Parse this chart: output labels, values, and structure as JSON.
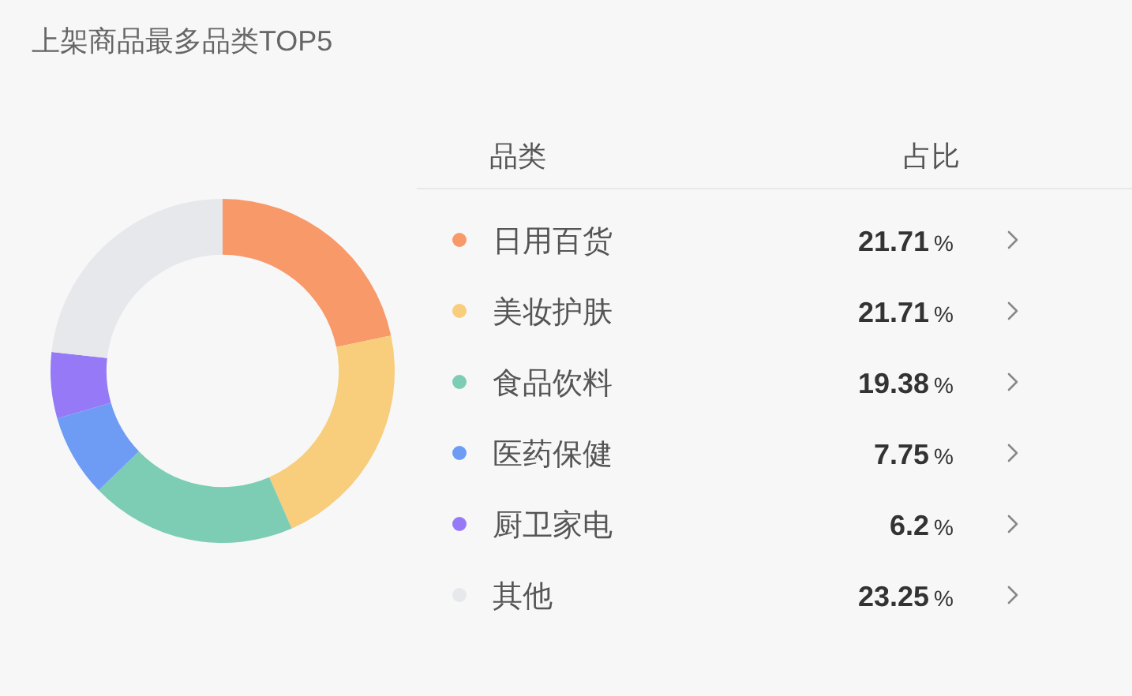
{
  "chart_data": {
    "type": "donut",
    "title": "上架商品最多品类TOP5",
    "categories": [
      "日用百货",
      "美妆护肤",
      "食品饮料",
      "医药保健",
      "厨卫家电",
      "其他"
    ],
    "values": [
      21.71,
      21.71,
      19.38,
      7.75,
      6.2,
      23.25
    ],
    "colors": [
      "#f8996a",
      "#f8cd7b",
      "#7ccdb4",
      "#6e9cf5",
      "#9679f6",
      "#e7e8ec"
    ],
    "value_labels": [
      "21.71%",
      "21.71%",
      "19.38%",
      "7.75%",
      "6.2%",
      "23.25%"
    ],
    "legend": "right",
    "legend_title": "品类",
    "annotations": [
      "占比"
    ]
  }
}
